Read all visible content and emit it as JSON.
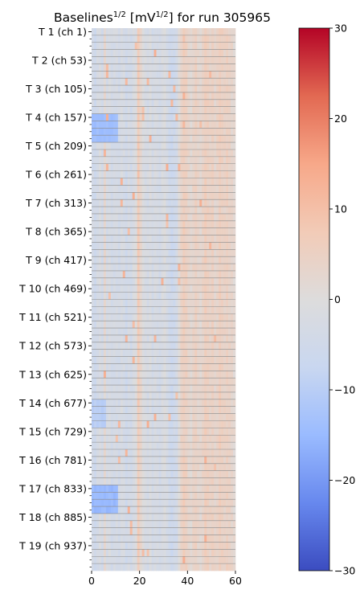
{
  "chart_data": {
    "type": "heatmap",
    "title": {
      "prefix": "Baselines",
      "prefix_sup": "1/2",
      "middle": " [mV",
      "unit_sup": "1/2",
      "suffix": "] for run 305965"
    },
    "xlabel": "",
    "ylabel": "",
    "x_ticks": [
      "0",
      "20",
      "40",
      "60"
    ],
    "xlim": [
      0,
      60
    ],
    "n_columns": 60,
    "y_tick_labels": [
      "T 1 (ch 1)",
      "T 2 (ch 53)",
      "T 3 (ch 105)",
      "T 4 (ch 157)",
      "T 5 (ch 209)",
      "T 6 (ch 261)",
      "T 7 (ch 313)",
      "T 8 (ch 365)",
      "T 9 (ch 417)",
      "T 10 (ch 469)",
      "T 11 (ch 521)",
      "T 12 (ch 573)",
      "T 13 (ch 625)",
      "T 14 (ch 677)",
      "T 15 (ch 729)",
      "T 16 (ch 781)",
      "T 17 (ch 833)",
      "T 18 (ch 885)",
      "T 19 (ch 937)"
    ],
    "rows_per_group": 4,
    "colorbar": {
      "vmin": -30,
      "vmax": 30,
      "ticks": [
        "30",
        "20",
        "10",
        "0",
        "−10",
        "−20",
        "−30"
      ],
      "colormap": "coolwarm",
      "stops": [
        "#3b4cc0",
        "#6788ee",
        "#9abbff",
        "#c9d7f0",
        "#dddcdc",
        "#f2cbb7",
        "#f7a889",
        "#e26952",
        "#b40426"
      ]
    },
    "column_offsets": [
      -4,
      -5,
      -3,
      -2,
      -4,
      2,
      -3,
      -2,
      -4,
      -3,
      -3,
      -4,
      -2,
      -3,
      -5,
      -3,
      -4,
      -2,
      -1,
      7,
      3,
      -1,
      -2,
      -3,
      -1,
      -4,
      -2,
      -3,
      -4,
      -2,
      -1,
      -3,
      -5,
      -6,
      -5,
      -4,
      1,
      4,
      6,
      5,
      3,
      2,
      4,
      5,
      3,
      2,
      4,
      6,
      5,
      4,
      5,
      3,
      4,
      6,
      5,
      4,
      5,
      4,
      3,
      2
    ],
    "blue_blocks": [
      {
        "group": 3,
        "col_start": 0,
        "col_end": 11,
        "value": -14
      },
      {
        "group": 13,
        "col_start": 0,
        "col_end": 6,
        "value": -10
      },
      {
        "group": 16,
        "col_start": 0,
        "col_end": 11,
        "value": -15
      }
    ],
    "grid": true,
    "legend": "none"
  }
}
